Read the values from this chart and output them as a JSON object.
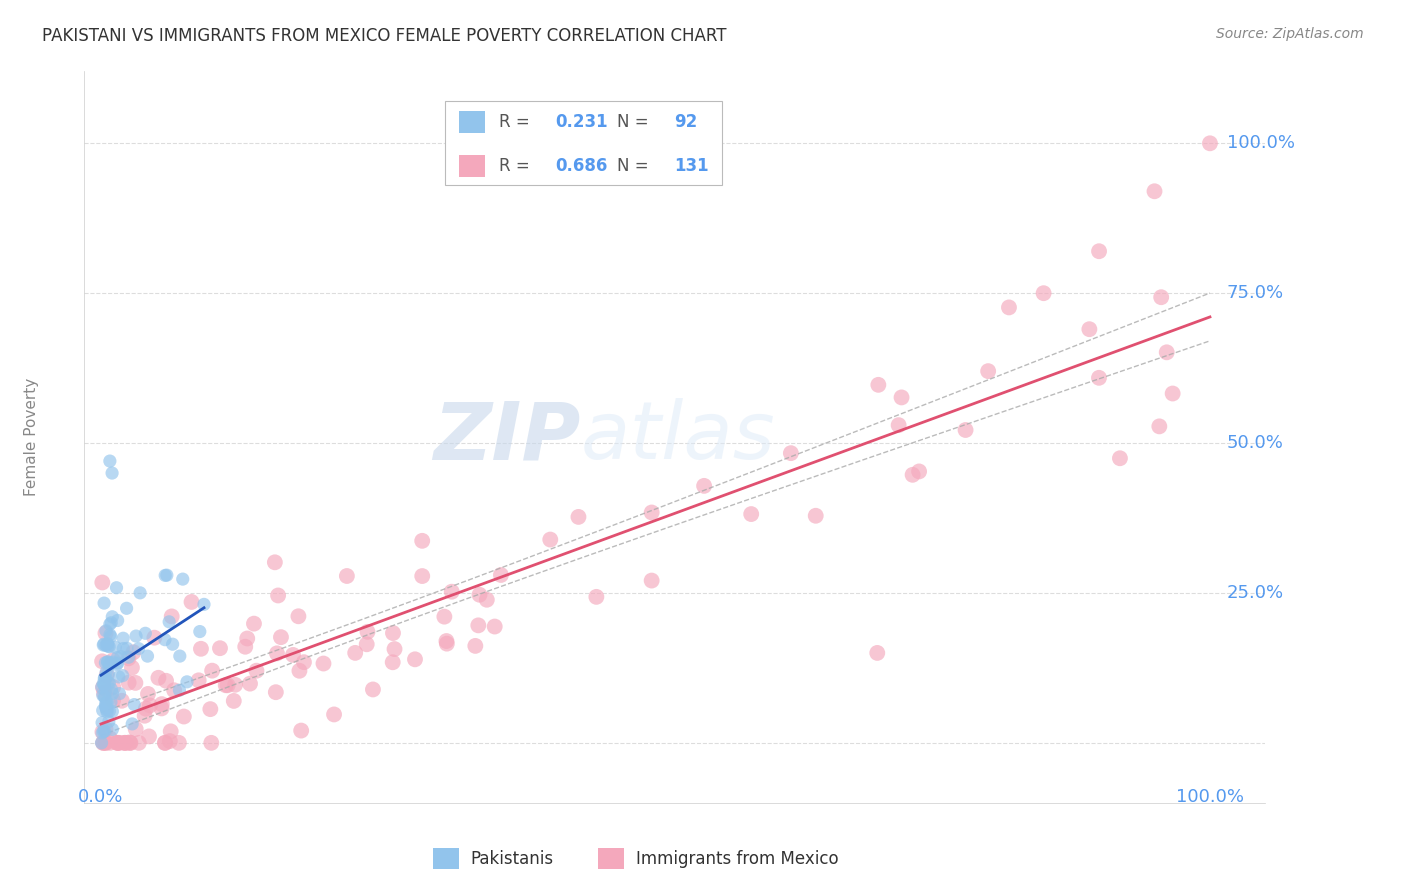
{
  "title": "PAKISTANI VS IMMIGRANTS FROM MEXICO FEMALE POVERTY CORRELATION CHART",
  "source": "Source: ZipAtlas.com",
  "watermark_zip": "ZIP",
  "watermark_atlas": "atlas",
  "ylabel": "Female Poverty",
  "legend_pakistani_R": "0.231",
  "legend_pakistani_N": "92",
  "legend_mexico_R": "0.686",
  "legend_mexico_N": "131",
  "pakistani_color": "#92C4EC",
  "mexico_color": "#F4A8BC",
  "pakistani_line_color": "#2255BB",
  "mexico_line_color": "#E05070",
  "conf_line_color": "#AAAAAA",
  "background_color": "#FFFFFF",
  "grid_color": "#DDDDDD",
  "axis_label_color": "#5599EE",
  "title_color": "#333333",
  "source_color": "#888888",
  "ylabel_color": "#888888",
  "legend_text_color": "#555555"
}
